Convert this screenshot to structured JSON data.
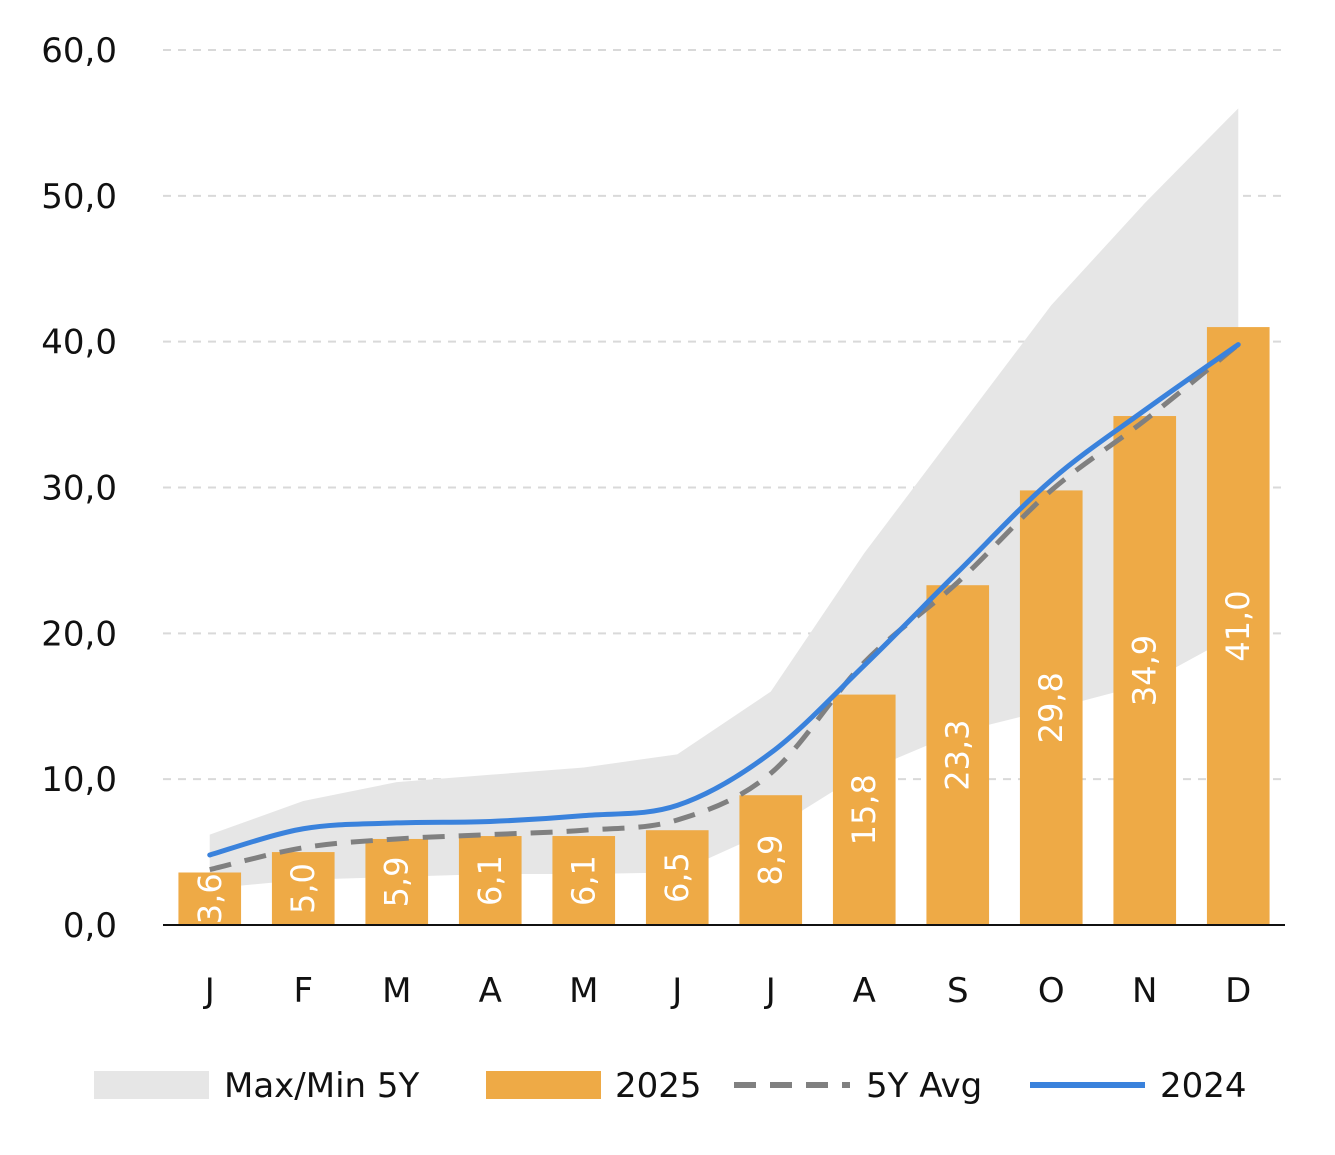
{
  "chart_data": {
    "type": "bar",
    "categories": [
      "J",
      "F",
      "M",
      "A",
      "M",
      "J",
      "J",
      "A",
      "S",
      "O",
      "N",
      "D"
    ],
    "ylim": [
      0,
      60
    ],
    "yticks": [
      "0,0",
      "10,0",
      "20,0",
      "30,0",
      "40,0",
      "50,0",
      "60,0"
    ],
    "grid": true,
    "legend_position": "bottom",
    "series": [
      {
        "name": "Max/Min 5Y",
        "kind": "band",
        "color": "#E6E6E6",
        "max": [
          6.2,
          8.5,
          9.8,
          10.3,
          10.8,
          11.7,
          16.0,
          25.5,
          34.0,
          42.5,
          49.5,
          56.0
        ],
        "min": [
          2.5,
          3.1,
          3.3,
          3.5,
          3.5,
          3.6,
          6.5,
          10.5,
          13.2,
          14.8,
          16.5,
          20.0
        ]
      },
      {
        "name": "2025",
        "kind": "bar",
        "color": "#EEAA46",
        "values": [
          3.6,
          5.0,
          5.9,
          6.1,
          6.1,
          6.5,
          8.9,
          15.8,
          23.3,
          29.8,
          34.9,
          41.0
        ],
        "labels": [
          "3,6",
          "5,0",
          "5,9",
          "6,1",
          "6,1",
          "6,5",
          "8,9",
          "15,8",
          "23,3",
          "29,8",
          "34,9",
          "41,0"
        ]
      },
      {
        "name": "5Y Avg",
        "kind": "dashed-line",
        "color": "#808080",
        "values": [
          3.8,
          5.3,
          5.9,
          6.2,
          6.5,
          7.2,
          10.4,
          18.0,
          23.5,
          29.8,
          34.6,
          39.8
        ]
      },
      {
        "name": "2024",
        "kind": "line",
        "color": "#3A82DC",
        "values": [
          4.8,
          6.6,
          7.0,
          7.1,
          7.5,
          8.2,
          11.8,
          17.8,
          24.2,
          30.5,
          35.3,
          39.8
        ]
      }
    ]
  }
}
